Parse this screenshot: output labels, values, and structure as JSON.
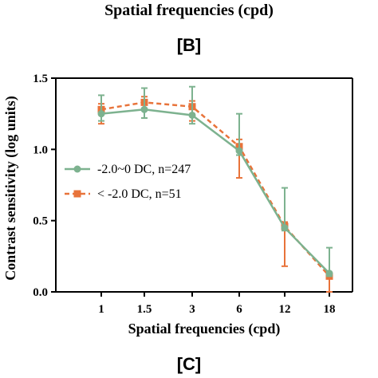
{
  "top_caption": "Spatial frequencies (cpd)",
  "panel_b_label": "[B]",
  "panel_c_label": "[C]",
  "chart_data": {
    "type": "line",
    "categories": [
      "1",
      "1.5",
      "3",
      "6",
      "12",
      "18"
    ],
    "xlabel": "Spatial frequencies (cpd)",
    "ylabel": "Contrast sensitivity (log units)",
    "ylim": [
      0,
      1.5
    ],
    "yticks": [
      "0.0",
      "0.5",
      "1.0",
      "1.5"
    ],
    "grid": false,
    "legend_position": "middle-left",
    "series": [
      {
        "name": "-2.0~0 DC, n=247",
        "color": "#7db28f",
        "line_style": "solid",
        "marker": "circle",
        "values": [
          1.25,
          1.28,
          1.24,
          0.99,
          0.45,
          0.13
        ],
        "err_plus": [
          0.13,
          0.15,
          0.2,
          0.26,
          0.28,
          0.18
        ],
        "err_minus": [
          0.05,
          0.06,
          0.06,
          0.03,
          0.02,
          0.02
        ]
      },
      {
        "name": "< -2.0 DC, n=51",
        "color": "#e8733a",
        "line_style": "dashed",
        "marker": "square",
        "values": [
          1.28,
          1.33,
          1.3,
          1.02,
          0.46,
          0.11
        ],
        "err_plus": [
          0.04,
          0.04,
          0.04,
          0.05,
          0.03,
          0.02
        ],
        "err_minus": [
          0.1,
          0.11,
          0.1,
          0.22,
          0.28,
          0.11
        ]
      }
    ]
  }
}
